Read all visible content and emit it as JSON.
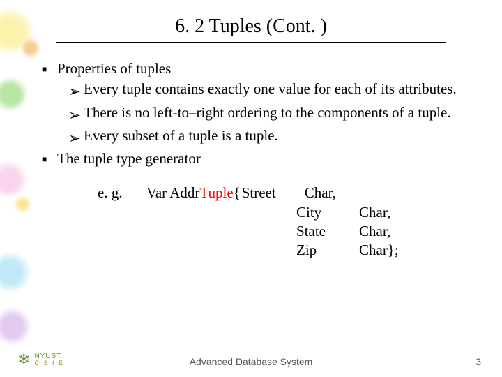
{
  "title": "6. 2    Tuples (Cont. )",
  "bullets": {
    "b1": "Properties of tuples",
    "b1_1": "Every tuple contains exactly one value for each of its attributes.",
    "b1_2": "There is no left-to–right ordering to the components of a tuple.",
    "b1_3": "Every subset of a tuple is a tuple.",
    "b2": "The tuple type generator"
  },
  "example": {
    "label": "e. g.",
    "var_prefix": "Var Addr ",
    "tuple_kw": "Tuple",
    "open": " { ",
    "rows": [
      {
        "attr": "Street",
        "type": "Char,"
      },
      {
        "attr": "City",
        "type": "Char,"
      },
      {
        "attr": "State",
        "type": "Char,"
      },
      {
        "attr": "Zip",
        "type": "Char};"
      }
    ]
  },
  "footer": {
    "logo_top": "NYUST",
    "logo_bot": "C S I E",
    "center": "Advanced Database System",
    "page": "3"
  },
  "colors": {
    "tuple_kw": "#ff0000",
    "text": "#000000",
    "footer_text": "#555555",
    "logo_green": "#6d8f2f"
  }
}
